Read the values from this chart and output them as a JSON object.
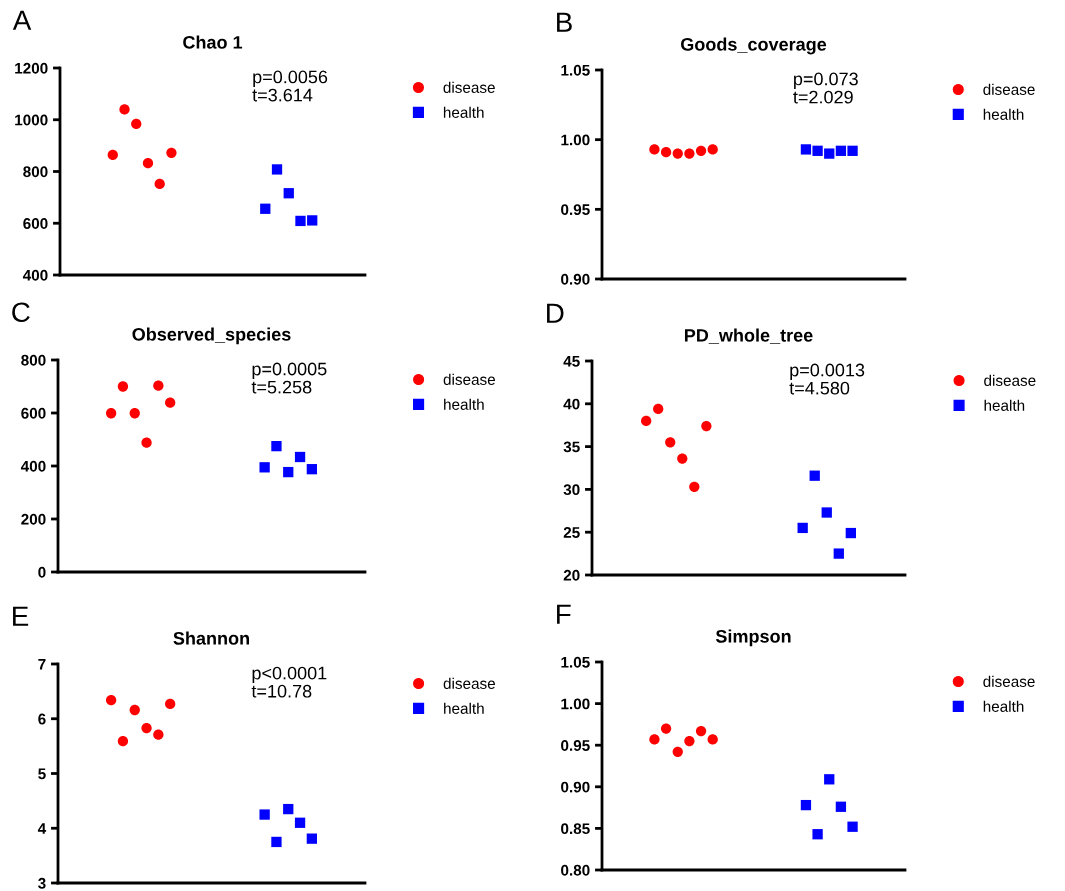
{
  "chart_data": [
    {
      "type": "scatter",
      "title": "Chao 1",
      "annotations": [
        "A",
        "p=0.0056\nt=3.614"
      ],
      "categories": [
        null,
        null,
        null,
        null,
        null,
        null,
        null,
        null,
        null,
        null,
        null,
        null,
        null,
        null,
        null,
        null,
        null,
        null,
        null,
        null,
        null,
        null,
        null,
        null,
        null,
        null
      ],
      "ylim": [
        400,
        1200
      ],
      "yticks": [
        400,
        600,
        800,
        1000,
        1200
      ],
      "grid": false,
      "legend": "right",
      "series": [
        {
          "name": "disease",
          "color": "#ff0000",
          "marker": "circle",
          "values": [
            null,
            null,
            null,
            null,
            864,
            1040,
            984,
            832,
            752,
            872,
            null,
            null,
            null,
            null,
            null,
            null,
            null,
            null,
            null,
            null,
            null,
            null,
            null,
            null,
            null,
            null
          ]
        },
        {
          "name": "health",
          "color": "#0000ff",
          "marker": "square",
          "values": [
            null,
            null,
            null,
            null,
            null,
            null,
            null,
            null,
            null,
            null,
            null,
            null,
            null,
            null,
            null,
            null,
            null,
            656,
            808,
            716,
            609,
            611,
            null,
            null,
            null,
            null
          ]
        }
      ]
    },
    {
      "type": "scatter",
      "title": "Goods_coverage",
      "annotations": [
        "B",
        "p=0.073\nt=2.029"
      ],
      "categories": [
        null,
        null,
        null,
        null,
        null,
        null,
        null,
        null,
        null,
        null,
        null,
        null,
        null,
        null,
        null,
        null,
        null,
        null,
        null,
        null,
        null,
        null,
        null,
        null,
        null,
        null
      ],
      "ylim": [
        0.9,
        1.05
      ],
      "yticks": [
        {
          "value": 0.9,
          "label": "0.90"
        },
        {
          "value": 0.95,
          "label": "0.95"
        },
        {
          "value": 1.0,
          "label": "1.00"
        },
        {
          "value": 1.05,
          "label": "1.05"
        }
      ],
      "grid": false,
      "legend": "right",
      "series": [
        {
          "name": "disease",
          "color": "#ff0000",
          "marker": "circle",
          "values": [
            null,
            null,
            null,
            null,
            0.993,
            0.991,
            0.99,
            0.99,
            0.992,
            0.993,
            null,
            null,
            null,
            null,
            null,
            null,
            null,
            null,
            null,
            null,
            null,
            null,
            null,
            null,
            null,
            null
          ]
        },
        {
          "name": "health",
          "color": "#0000ff",
          "marker": "square",
          "values": [
            null,
            null,
            null,
            null,
            null,
            null,
            null,
            null,
            null,
            null,
            null,
            null,
            null,
            null,
            null,
            null,
            null,
            0.993,
            0.992,
            0.99,
            0.992,
            0.992,
            null,
            null,
            null,
            null
          ]
        }
      ]
    },
    {
      "type": "scatter",
      "title": "Observed_species",
      "annotations": [
        "C",
        "p=0.0005\nt=5.258"
      ],
      "categories": [
        null,
        null,
        null,
        null,
        null,
        null,
        null,
        null,
        null,
        null,
        null,
        null,
        null,
        null,
        null,
        null,
        null,
        null,
        null,
        null,
        null,
        null,
        null,
        null,
        null,
        null
      ],
      "ylim": [
        0,
        800
      ],
      "yticks": [
        0,
        200,
        400,
        600,
        800
      ],
      "grid": false,
      "legend": "right",
      "series": [
        {
          "name": "disease",
          "color": "#ff0000",
          "marker": "circle",
          "values": [
            null,
            null,
            null,
            null,
            599,
            700,
            599,
            488,
            703,
            639,
            null,
            null,
            null,
            null,
            null,
            null,
            null,
            null,
            null,
            null,
            null,
            null,
            null,
            null,
            null,
            null
          ]
        },
        {
          "name": "health",
          "color": "#0000ff",
          "marker": "square",
          "values": [
            null,
            null,
            null,
            null,
            null,
            null,
            null,
            null,
            null,
            null,
            null,
            null,
            null,
            null,
            null,
            null,
            null,
            395,
            475,
            377,
            434,
            388,
            null,
            null,
            null,
            null
          ]
        }
      ]
    },
    {
      "type": "scatter",
      "title": "PD_whole_tree",
      "annotations": [
        "D",
        "p=0.0013\nt=4.580"
      ],
      "categories": [
        null,
        null,
        null,
        null,
        null,
        null,
        null,
        null,
        null,
        null,
        null,
        null,
        null,
        null,
        null,
        null,
        null,
        null,
        null,
        null,
        null,
        null,
        null,
        null,
        null,
        null
      ],
      "ylim": [
        20,
        45
      ],
      "yticks": [
        20,
        25,
        30,
        35,
        40,
        45
      ],
      "grid": false,
      "legend": "right",
      "series": [
        {
          "name": "disease",
          "color": "#ff0000",
          "marker": "circle",
          "values": [
            null,
            null,
            null,
            null,
            38.0,
            39.4,
            35.5,
            33.6,
            30.3,
            37.4,
            null,
            null,
            null,
            null,
            null,
            null,
            null,
            null,
            null,
            null,
            null,
            null,
            null,
            null,
            null,
            null
          ]
        },
        {
          "name": "health",
          "color": "#0000ff",
          "marker": "square",
          "values": [
            null,
            null,
            null,
            null,
            null,
            null,
            null,
            null,
            null,
            null,
            null,
            null,
            null,
            null,
            null,
            null,
            null,
            25.5,
            31.6,
            27.3,
            22.5,
            24.9,
            null,
            null,
            null,
            null
          ]
        }
      ]
    },
    {
      "type": "scatter",
      "title": "Shannon",
      "annotations": [
        "E",
        "p<0.0001\nt=10.78"
      ],
      "categories": [
        null,
        null,
        null,
        null,
        null,
        null,
        null,
        null,
        null,
        null,
        null,
        null,
        null,
        null,
        null,
        null,
        null,
        null,
        null,
        null,
        null,
        null,
        null,
        null,
        null,
        null
      ],
      "ylim": [
        3,
        7
      ],
      "yticks": [
        3,
        4,
        5,
        6,
        7
      ],
      "grid": false,
      "legend": "right",
      "series": [
        {
          "name": "disease",
          "color": "#ff0000",
          "marker": "circle",
          "values": [
            null,
            null,
            null,
            null,
            6.34,
            5.59,
            6.16,
            5.83,
            5.71,
            6.27,
            null,
            null,
            null,
            null,
            null,
            null,
            null,
            null,
            null,
            null,
            null,
            null,
            null,
            null,
            null,
            null
          ]
        },
        {
          "name": "health",
          "color": "#0000ff",
          "marker": "square",
          "values": [
            null,
            null,
            null,
            null,
            null,
            null,
            null,
            null,
            null,
            null,
            null,
            null,
            null,
            null,
            null,
            null,
            null,
            4.25,
            3.75,
            4.35,
            4.1,
            3.81,
            null,
            null,
            null,
            null
          ]
        }
      ]
    },
    {
      "type": "scatter",
      "title": "Simpson",
      "annotations": [
        "F"
      ],
      "categories": [
        null,
        null,
        null,
        null,
        null,
        null,
        null,
        null,
        null,
        null,
        null,
        null,
        null,
        null,
        null,
        null,
        null,
        null,
        null,
        null,
        null,
        null,
        null,
        null,
        null,
        null
      ],
      "ylim": [
        0.8,
        1.05
      ],
      "yticks": [
        {
          "value": 0.8,
          "label": "0.80"
        },
        {
          "value": 0.85,
          "label": "0.85"
        },
        {
          "value": 0.9,
          "label": "0.90"
        },
        {
          "value": 0.95,
          "label": "0.95"
        },
        {
          "value": 1.0,
          "label": "1.00"
        },
        {
          "value": 1.05,
          "label": "1.05"
        }
      ],
      "grid": false,
      "legend": "right",
      "series": [
        {
          "name": "disease",
          "color": "#ff0000",
          "marker": "circle",
          "values": [
            null,
            null,
            null,
            null,
            0.957,
            0.97,
            0.942,
            0.955,
            0.967,
            0.957,
            null,
            null,
            null,
            null,
            null,
            null,
            null,
            null,
            null,
            null,
            null,
            null,
            null,
            null,
            null,
            null
          ]
        },
        {
          "name": "health",
          "color": "#0000ff",
          "marker": "square",
          "values": [
            null,
            null,
            null,
            null,
            null,
            null,
            null,
            null,
            null,
            null,
            null,
            null,
            null,
            null,
            null,
            null,
            null,
            0.878,
            0.843,
            0.909,
            0.876,
            0.852,
            null,
            null,
            null,
            null
          ]
        }
      ]
    }
  ]
}
